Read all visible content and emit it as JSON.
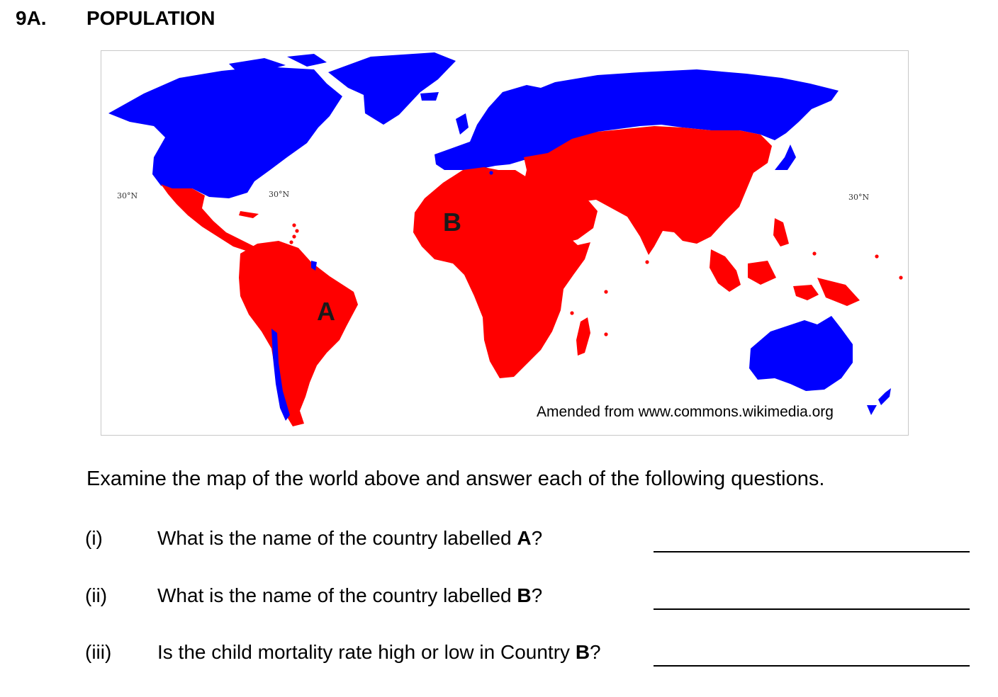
{
  "header": {
    "number": "9A.",
    "title": "POPULATION"
  },
  "map": {
    "colors": {
      "developed": "#0000ff",
      "developing": "#ff0000",
      "ocean": "#ffffff",
      "borders": "#ffffff"
    },
    "label_a": "A",
    "label_b": "B",
    "lat_labels": [
      "30°N",
      "30°N",
      "30°N"
    ],
    "credit": "Amended from www.commons.wikimedia.org"
  },
  "instructions": "Examine the map of the world above and answer each of the following questions.",
  "questions": [
    {
      "num": "(i)",
      "text": "What is the name of the country labelled ",
      "bold": "A",
      "end": "?"
    },
    {
      "num": "(ii)",
      "text": "What is the name of the country labelled ",
      "bold": "B",
      "end": "?"
    },
    {
      "num": "(iii)",
      "text": "Is the child mortality rate high or low in Country ",
      "bold": "B",
      "end": "?"
    }
  ]
}
